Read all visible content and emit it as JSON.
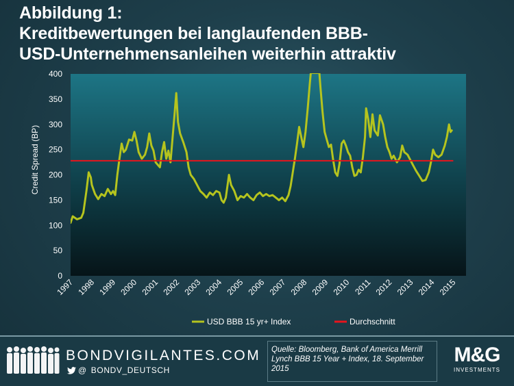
{
  "title": {
    "line1": "Abbildung 1:",
    "line2": "Kreditbewertungen bei langlaufenden BBB-",
    "line3": "USD-Unternehmensanleihen weiterhin attraktiv"
  },
  "footer": {
    "brand": "BONDVIGILANTES.COM",
    "at": "@",
    "twitter": "BONDV_DEUTSCH",
    "source": "Quelle: Bloomberg, Bank of America Merrill Lynch BBB 15 Year + Index, 18. September 2015",
    "logo_text": "M&G",
    "logo_sub": "INVESTMENTS"
  },
  "colors": {
    "series": "#b5c41e",
    "average": "#e8141c",
    "plot_top": "#1d7585",
    "plot_bottom": "#061418",
    "text": "#ffffff"
  },
  "chart_data": {
    "type": "line",
    "ylabel": "Credit Spread (BP)",
    "xlabel": "",
    "ylim": [
      0,
      400
    ],
    "yticks": [
      0,
      50,
      100,
      150,
      200,
      250,
      300,
      350,
      400
    ],
    "xlim": [
      1997,
      2015.6
    ],
    "xticks": [
      "1997",
      "1998",
      "1999",
      "2000",
      "2001",
      "2002",
      "2003",
      "2004",
      "2005",
      "2006",
      "2007",
      "2008",
      "2009",
      "2010",
      "2011",
      "2012",
      "2013",
      "2014",
      "2015"
    ],
    "legend": [
      "USD BBB 15 yr+ Index",
      "Durchschnitt"
    ],
    "legend_position": "bottom",
    "average": 228,
    "series": [
      {
        "name": "USD BBB 15 yr+ Index",
        "points": [
          [
            1997.0,
            105
          ],
          [
            1997.1,
            118
          ],
          [
            1997.3,
            112
          ],
          [
            1997.5,
            115
          ],
          [
            1997.6,
            125
          ],
          [
            1997.75,
            170
          ],
          [
            1997.85,
            205
          ],
          [
            1997.95,
            195
          ],
          [
            1998.0,
            180
          ],
          [
            1998.15,
            162
          ],
          [
            1998.3,
            152
          ],
          [
            1998.45,
            162
          ],
          [
            1998.6,
            158
          ],
          [
            1998.75,
            172
          ],
          [
            1998.9,
            162
          ],
          [
            1999.0,
            168
          ],
          [
            1999.1,
            160
          ],
          [
            1999.2,
            200
          ],
          [
            1999.3,
            232
          ],
          [
            1999.4,
            262
          ],
          [
            1999.5,
            245
          ],
          [
            1999.6,
            250
          ],
          [
            1999.75,
            270
          ],
          [
            1999.9,
            268
          ],
          [
            2000.0,
            285
          ],
          [
            2000.1,
            268
          ],
          [
            2000.2,
            245
          ],
          [
            2000.35,
            232
          ],
          [
            2000.5,
            240
          ],
          [
            2000.6,
            255
          ],
          [
            2000.7,
            282
          ],
          [
            2000.8,
            258
          ],
          [
            2000.9,
            248
          ],
          [
            2001.0,
            225
          ],
          [
            2001.1,
            220
          ],
          [
            2001.2,
            215
          ],
          [
            2001.3,
            245
          ],
          [
            2001.4,
            265
          ],
          [
            2001.5,
            232
          ],
          [
            2001.6,
            248
          ],
          [
            2001.7,
            225
          ],
          [
            2001.8,
            275
          ],
          [
            2001.9,
            325
          ],
          [
            2001.97,
            362
          ],
          [
            2002.05,
            305
          ],
          [
            2002.15,
            282
          ],
          [
            2002.3,
            265
          ],
          [
            2002.45,
            245
          ],
          [
            2002.55,
            215
          ],
          [
            2002.65,
            200
          ],
          [
            2002.8,
            192
          ],
          [
            2002.95,
            180
          ],
          [
            2003.1,
            168
          ],
          [
            2003.25,
            162
          ],
          [
            2003.4,
            155
          ],
          [
            2003.55,
            165
          ],
          [
            2003.7,
            160
          ],
          [
            2003.85,
            168
          ],
          [
            2004.0,
            165
          ],
          [
            2004.1,
            150
          ],
          [
            2004.2,
            145
          ],
          [
            2004.3,
            155
          ],
          [
            2004.4,
            185
          ],
          [
            2004.45,
            200
          ],
          [
            2004.55,
            180
          ],
          [
            2004.7,
            168
          ],
          [
            2004.85,
            150
          ],
          [
            2005.0,
            158
          ],
          [
            2005.15,
            155
          ],
          [
            2005.3,
            162
          ],
          [
            2005.45,
            155
          ],
          [
            2005.6,
            150
          ],
          [
            2005.75,
            160
          ],
          [
            2005.9,
            165
          ],
          [
            2006.05,
            158
          ],
          [
            2006.2,
            162
          ],
          [
            2006.35,
            158
          ],
          [
            2006.5,
            160
          ],
          [
            2006.65,
            155
          ],
          [
            2006.8,
            150
          ],
          [
            2006.95,
            155
          ],
          [
            2007.1,
            148
          ],
          [
            2007.25,
            160
          ],
          [
            2007.35,
            178
          ],
          [
            2007.45,
            205
          ],
          [
            2007.55,
            232
          ],
          [
            2007.65,
            262
          ],
          [
            2007.75,
            295
          ],
          [
            2007.85,
            275
          ],
          [
            2007.95,
            255
          ],
          [
            2008.05,
            285
          ],
          [
            2008.15,
            330
          ],
          [
            2008.25,
            380
          ],
          [
            2008.3,
            402
          ],
          [
            2008.7,
            402
          ],
          [
            2008.75,
            375
          ],
          [
            2008.85,
            325
          ],
          [
            2008.95,
            285
          ],
          [
            2009.05,
            270
          ],
          [
            2009.15,
            255
          ],
          [
            2009.25,
            260
          ],
          [
            2009.35,
            230
          ],
          [
            2009.45,
            205
          ],
          [
            2009.55,
            198
          ],
          [
            2009.65,
            222
          ],
          [
            2009.75,
            262
          ],
          [
            2009.85,
            268
          ],
          [
            2009.95,
            258
          ],
          [
            2010.05,
            245
          ],
          [
            2010.15,
            238
          ],
          [
            2010.25,
            215
          ],
          [
            2010.35,
            198
          ],
          [
            2010.45,
            200
          ],
          [
            2010.55,
            210
          ],
          [
            2010.65,
            205
          ],
          [
            2010.75,
            235
          ],
          [
            2010.85,
            275
          ],
          [
            2010.9,
            332
          ],
          [
            2011.0,
            310
          ],
          [
            2011.1,
            275
          ],
          [
            2011.2,
            320
          ],
          [
            2011.3,
            288
          ],
          [
            2011.45,
            278
          ],
          [
            2011.55,
            318
          ],
          [
            2011.7,
            300
          ],
          [
            2011.8,
            275
          ],
          [
            2011.9,
            255
          ],
          [
            2012.0,
            245
          ],
          [
            2012.1,
            232
          ],
          [
            2012.2,
            238
          ],
          [
            2012.35,
            225
          ],
          [
            2012.5,
            235
          ],
          [
            2012.6,
            258
          ],
          [
            2012.7,
            245
          ],
          [
            2012.85,
            240
          ],
          [
            2012.95,
            232
          ],
          [
            2013.1,
            220
          ],
          [
            2013.25,
            208
          ],
          [
            2013.4,
            198
          ],
          [
            2013.55,
            188
          ],
          [
            2013.7,
            190
          ],
          [
            2013.85,
            205
          ],
          [
            2013.95,
            225
          ],
          [
            2014.05,
            250
          ],
          [
            2014.15,
            240
          ],
          [
            2014.3,
            235
          ],
          [
            2014.45,
            240
          ],
          [
            2014.6,
            258
          ],
          [
            2014.7,
            275
          ],
          [
            2014.8,
            300
          ],
          [
            2014.87,
            285
          ],
          [
            2014.93,
            288
          ]
        ]
      },
      {
        "name": "Durchschnitt",
        "points": [
          [
            1997.0,
            228
          ],
          [
            2015.0,
            228
          ]
        ]
      }
    ]
  }
}
